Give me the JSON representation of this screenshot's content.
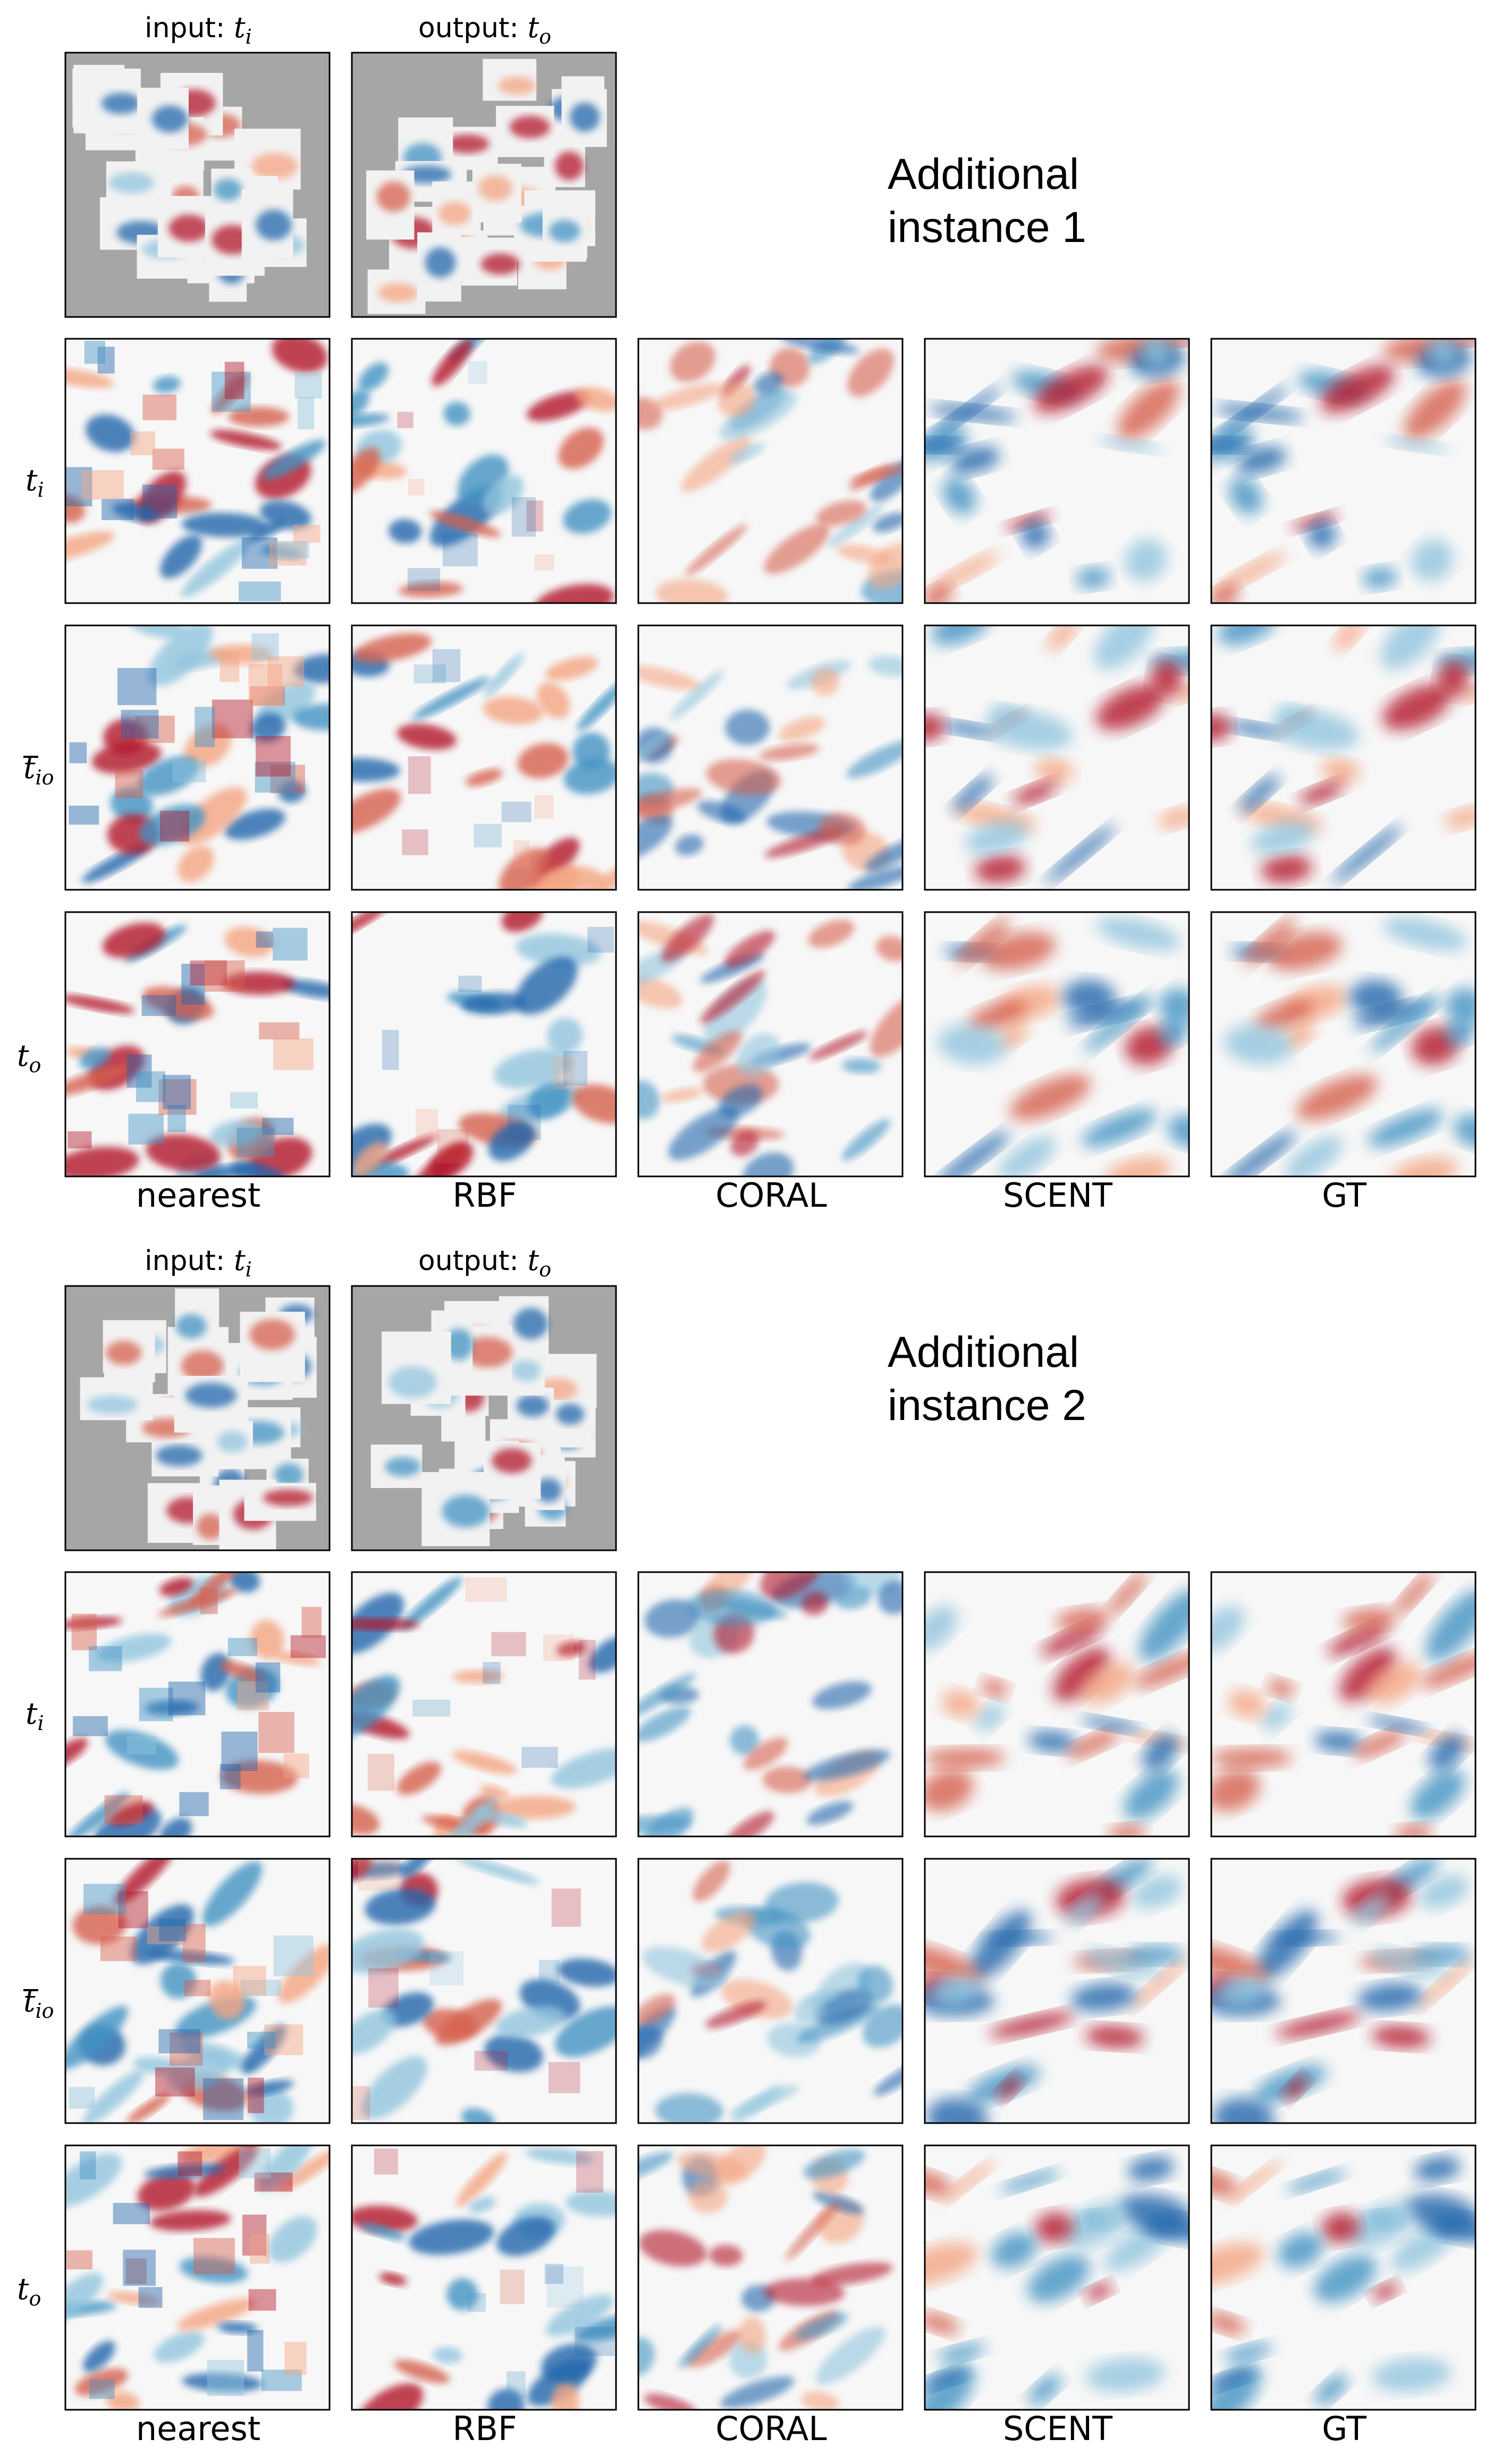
{
  "figure": {
    "instances": [
      {
        "title_line1": "Additional",
        "title_line2": "instance 1",
        "input_label": "input: ",
        "input_var": "t",
        "input_sub": "i",
        "output_label": "output: ",
        "output_var": "t",
        "output_sub": "o"
      },
      {
        "title_line1": "Additional",
        "title_line2": "instance 2",
        "input_label": "input: ",
        "input_var": "t",
        "input_sub": "i",
        "output_label": "output: ",
        "output_var": "t",
        "output_sub": "o"
      }
    ],
    "rows": [
      {
        "var": "t",
        "sub": "i",
        "bar": false
      },
      {
        "var": "t",
        "sub": "io",
        "bar": true
      },
      {
        "var": "t",
        "sub": "o",
        "bar": false
      }
    ],
    "columns": [
      "nearest",
      "RBF",
      "CORAL",
      "SCENT",
      "GT"
    ],
    "colormap": {
      "negative": "#053061",
      "neutral": "#f7f7f7",
      "positive": "#67001f",
      "masked": "#a6a6a6"
    }
  }
}
